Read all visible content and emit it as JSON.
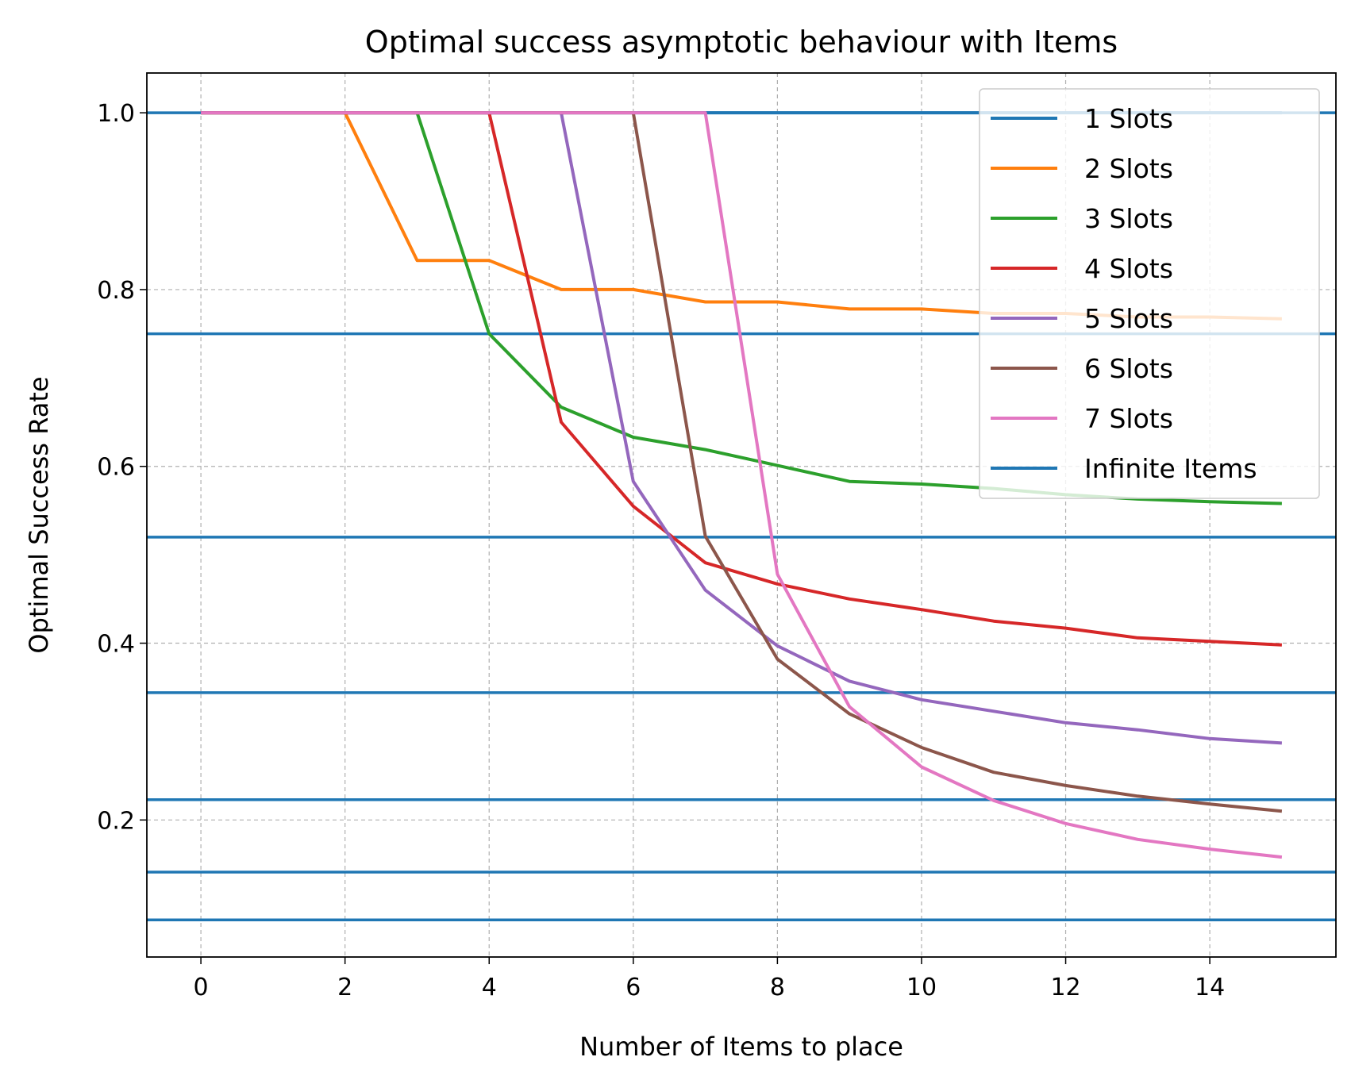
{
  "chart_data": {
    "type": "line",
    "title": "Optimal success asymptotic behaviour with Items",
    "xlabel": "Number of Items to place",
    "ylabel": "Optimal Success Rate",
    "xlim": [
      -0.75,
      15.75
    ],
    "ylim": [
      0.045,
      1.045
    ],
    "xticks": [
      0,
      2,
      4,
      6,
      8,
      10,
      12,
      14
    ],
    "yticks": [
      0.2,
      0.4,
      0.6,
      0.8,
      1.0
    ],
    "grid": true,
    "legend_position": "top-right",
    "series": [
      {
        "name": "1 Slots",
        "color": "#1f77b4",
        "x": [
          0,
          1,
          2,
          3,
          4,
          5,
          6,
          7,
          8,
          9,
          10,
          11,
          12,
          13,
          14,
          15
        ],
        "y": [
          1,
          1,
          1,
          1,
          1,
          1,
          1,
          1,
          1,
          1,
          1,
          1,
          1,
          1,
          1,
          1
        ]
      },
      {
        "name": "2 Slots",
        "color": "#ff7f0e",
        "x": [
          0,
          1,
          2,
          3,
          4,
          5,
          6,
          7,
          8,
          9,
          10,
          11,
          12,
          13,
          14,
          15
        ],
        "y": [
          1,
          1,
          1,
          0.833,
          0.833,
          0.8,
          0.8,
          0.786,
          0.786,
          0.778,
          0.778,
          0.773,
          0.773,
          0.769,
          0.769,
          0.767
        ]
      },
      {
        "name": "3 Slots",
        "color": "#2ca02c",
        "x": [
          0,
          1,
          2,
          3,
          4,
          5,
          6,
          7,
          8,
          9,
          10,
          11,
          12,
          13,
          14,
          15
        ],
        "y": [
          1,
          1,
          1,
          1,
          0.75,
          0.667,
          0.633,
          0.619,
          0.601,
          0.583,
          0.58,
          0.575,
          0.568,
          0.563,
          0.56,
          0.558
        ]
      },
      {
        "name": "4 Slots",
        "color": "#d62728",
        "x": [
          0,
          1,
          2,
          3,
          4,
          5,
          6,
          7,
          8,
          9,
          10,
          11,
          12,
          13,
          14,
          15
        ],
        "y": [
          1,
          1,
          1,
          1,
          1,
          0.65,
          0.555,
          0.491,
          0.467,
          0.45,
          0.438,
          0.425,
          0.417,
          0.406,
          0.402,
          0.398
        ]
      },
      {
        "name": "5 Slots",
        "color": "#9467bd",
        "x": [
          0,
          1,
          2,
          3,
          4,
          5,
          6,
          7,
          8,
          9,
          10,
          11,
          12,
          13,
          14,
          15
        ],
        "y": [
          1,
          1,
          1,
          1,
          1,
          1,
          0.583,
          0.46,
          0.397,
          0.357,
          0.336,
          0.323,
          0.31,
          0.302,
          0.292,
          0.287
        ]
      },
      {
        "name": "6 Slots",
        "color": "#8c564b",
        "x": [
          0,
          1,
          2,
          3,
          4,
          5,
          6,
          7,
          8,
          9,
          10,
          11,
          12,
          13,
          14,
          15
        ],
        "y": [
          1,
          1,
          1,
          1,
          1,
          1,
          1,
          0.521,
          0.382,
          0.32,
          0.282,
          0.254,
          0.239,
          0.227,
          0.218,
          0.21
        ]
      },
      {
        "name": "7 Slots",
        "color": "#e377c2",
        "x": [
          0,
          1,
          2,
          3,
          4,
          5,
          6,
          7,
          8,
          9,
          10,
          11,
          12,
          13,
          14,
          15
        ],
        "y": [
          1,
          1,
          1,
          1,
          1,
          1,
          1,
          1,
          0.478,
          0.328,
          0.26,
          0.222,
          0.196,
          0.178,
          0.167,
          0.158
        ]
      }
    ],
    "reference_lines": {
      "name": "Infinite Items",
      "color": "#1f77b4",
      "y": [
        1.0,
        0.75,
        0.52,
        0.344,
        0.223,
        0.141,
        0.087
      ]
    }
  }
}
